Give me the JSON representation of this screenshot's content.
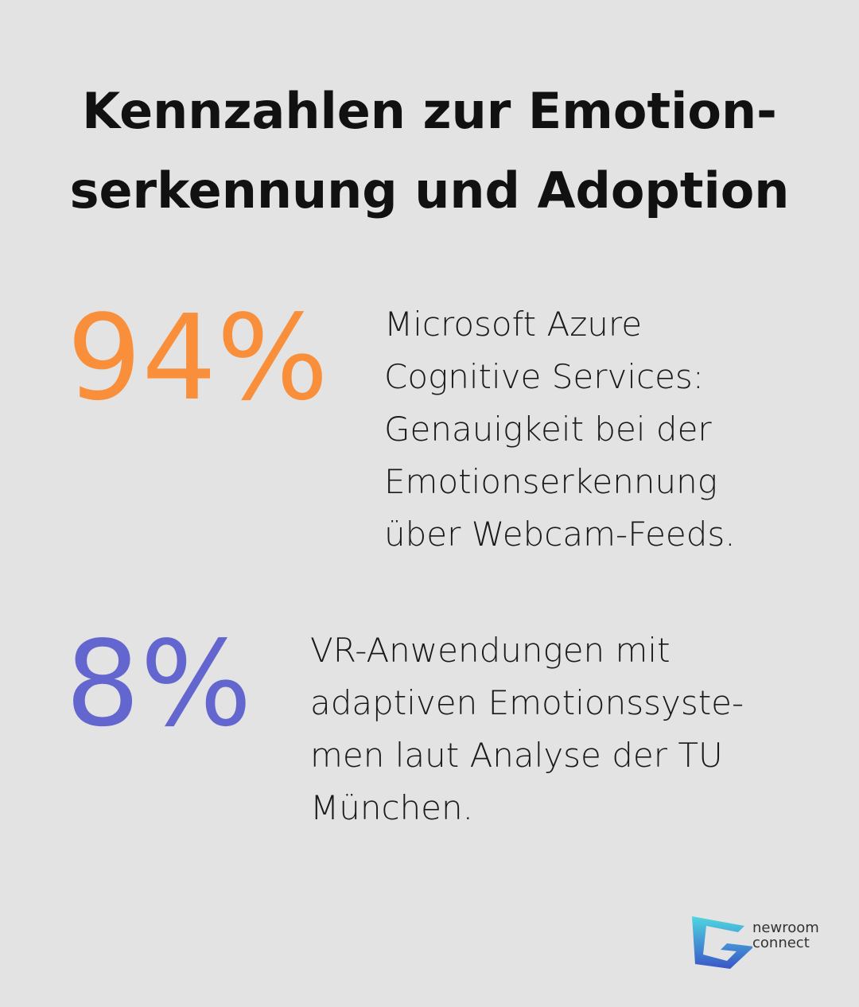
{
  "title": {
    "lines": [
      "Kennzahlen zur Emotion-",
      "serkennung und Adoption"
    ]
  },
  "stats": [
    {
      "value": "94%",
      "color": "#f98f3a",
      "lines": [
        "Microsoft Azure",
        "Cognitive Services:",
        "Genauigkeit bei der",
        "Emotionserkennung",
        "über Webcam-Feeds."
      ]
    },
    {
      "value": "8%",
      "color": "#6466cf",
      "lines": [
        "VR-Anwendungen mit",
        "adaptiven Emotionssyste-",
        "men laut Analyse der TU",
        "München."
      ]
    }
  ],
  "logo": {
    "lines": [
      "newroom",
      "connect"
    ]
  }
}
